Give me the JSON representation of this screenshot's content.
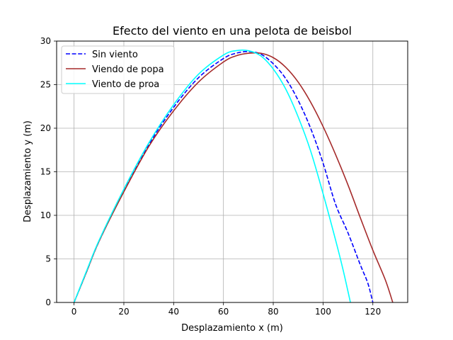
{
  "chart_data": {
    "type": "line",
    "title": "Efecto del viento en una pelota de beisbol",
    "xlabel": "Desplazamiento x (m)",
    "ylabel": "Desplazamiento y (m)",
    "xlim": [
      -7,
      134
    ],
    "ylim": [
      0,
      30
    ],
    "xticks": [
      0,
      20,
      40,
      60,
      80,
      100,
      120
    ],
    "yticks": [
      0,
      5,
      10,
      15,
      20,
      25,
      30
    ],
    "grid": true,
    "legend_position": "upper-left",
    "series": [
      {
        "name": "Sin viento",
        "color": "#0000ff",
        "dash": "dashed",
        "x": [
          0,
          5,
          10,
          20,
          30,
          40,
          50,
          60,
          65,
          70,
          75,
          80,
          85,
          90,
          95,
          100,
          105,
          110,
          115,
          118,
          120
        ],
        "y": [
          0,
          3.5,
          7.0,
          12.8,
          18.1,
          22.4,
          25.8,
          28.0,
          28.6,
          28.8,
          28.5,
          27.4,
          25.7,
          23.2,
          20.0,
          16.0,
          11.3,
          8.0,
          4.3,
          2.2,
          0
        ]
      },
      {
        "name": "Viendo de popa",
        "color": "#a52a2a",
        "dash": "solid",
        "x": [
          0,
          5,
          10,
          20,
          30,
          40,
          50,
          60,
          65,
          70,
          75,
          80,
          85,
          90,
          95,
          100,
          105,
          110,
          115,
          120,
          125,
          128
        ],
        "y": [
          0,
          3.5,
          7.0,
          12.7,
          17.9,
          22.0,
          25.3,
          27.6,
          28.3,
          28.6,
          28.6,
          28.1,
          27.0,
          25.3,
          23.0,
          20.2,
          17.0,
          13.5,
          9.7,
          6.0,
          2.6,
          0
        ]
      },
      {
        "name": "Viento de proa",
        "color": "#00ffff",
        "dash": "solid",
        "x": [
          0,
          5,
          10,
          20,
          30,
          40,
          50,
          60,
          65,
          70,
          75,
          80,
          85,
          90,
          95,
          100,
          105,
          108,
          111
        ],
        "y": [
          0,
          3.6,
          7.1,
          13.0,
          18.3,
          22.7,
          26.2,
          28.4,
          28.9,
          28.9,
          28.3,
          26.8,
          24.5,
          21.3,
          17.4,
          12.5,
          7.2,
          3.8,
          0
        ]
      }
    ]
  }
}
